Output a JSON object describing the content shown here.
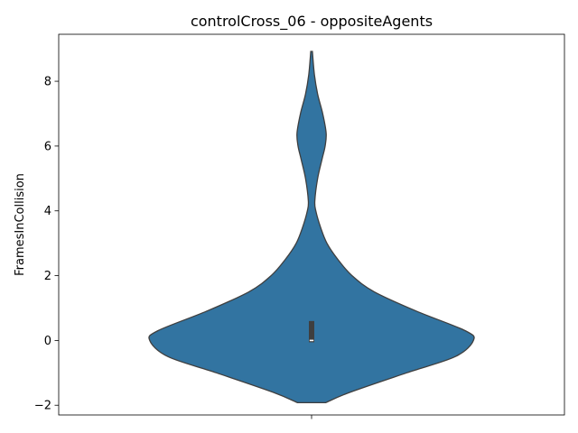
{
  "chart_data": {
    "type": "violin",
    "title": "controlCross_06 - oppositeAgents",
    "xlabel": "",
    "ylabel": "FramesInCollision",
    "ylim": [
      -2.3,
      9.45
    ],
    "yticks": [
      -2,
      0,
      2,
      4,
      6,
      8
    ],
    "ytick_labels": [
      "−2",
      "0",
      "2",
      "4",
      "6",
      "8"
    ],
    "grid": false,
    "colors": {
      "fill": "#3274a1",
      "edge": "#3f3f3f",
      "box": "#3f3f3f",
      "median": "#ffffff"
    },
    "violin": {
      "min": -1.92,
      "max": 8.92,
      "density_profile": [
        {
          "y": -1.92,
          "halfwidth": 0.07
        },
        {
          "y": -1.6,
          "halfwidth": 0.19
        },
        {
          "y": -1.0,
          "halfwidth": 0.47
        },
        {
          "y": -0.5,
          "halfwidth": 0.71
        },
        {
          "y": 0.0,
          "halfwidth": 0.8
        },
        {
          "y": 0.3,
          "halfwidth": 0.76
        },
        {
          "y": 0.9,
          "halfwidth": 0.52
        },
        {
          "y": 1.5,
          "halfwidth": 0.31
        },
        {
          "y": 2.0,
          "halfwidth": 0.2
        },
        {
          "y": 2.5,
          "halfwidth": 0.13
        },
        {
          "y": 3.0,
          "halfwidth": 0.076
        },
        {
          "y": 3.5,
          "halfwidth": 0.044
        },
        {
          "y": 4.0,
          "halfwidth": 0.021
        },
        {
          "y": 4.3,
          "halfwidth": 0.016
        },
        {
          "y": 5.0,
          "halfwidth": 0.03
        },
        {
          "y": 5.6,
          "halfwidth": 0.052
        },
        {
          "y": 6.0,
          "halfwidth": 0.067
        },
        {
          "y": 6.4,
          "halfwidth": 0.072
        },
        {
          "y": 7.0,
          "halfwidth": 0.055
        },
        {
          "y": 7.6,
          "halfwidth": 0.03
        },
        {
          "y": 8.2,
          "halfwidth": 0.014
        },
        {
          "y": 8.92,
          "halfwidth": 0.004
        }
      ]
    },
    "box": {
      "q1": 0.0,
      "median": 0.0,
      "q3": 0.6
    }
  }
}
